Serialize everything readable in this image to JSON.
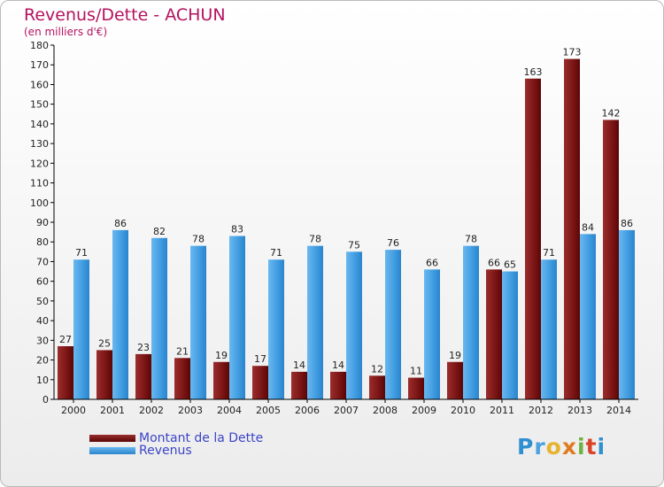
{
  "header": {
    "title": "Revenus/Dette - ACHUN",
    "subtitle": "(en milliers d'€)"
  },
  "legend": {
    "debt_label": "Montant de la Dette",
    "revenue_label": "Revenus"
  },
  "logo": {
    "text": "Proxiti"
  },
  "colors": {
    "debt": "#7a1414",
    "revenue": "#3f9be0"
  },
  "chart_data": {
    "type": "bar",
    "title": "Revenus/Dette - ACHUN",
    "subtitle": "(en milliers d'€)",
    "xlabel": "",
    "ylabel": "",
    "ylim": [
      0,
      180
    ],
    "yticks": [
      0,
      10,
      20,
      30,
      40,
      50,
      60,
      70,
      80,
      90,
      100,
      110,
      120,
      130,
      140,
      150,
      160,
      170,
      180
    ],
    "grid": false,
    "legend_position": "bottom-left",
    "categories": [
      "2000",
      "2001",
      "2002",
      "2003",
      "2004",
      "2005",
      "2006",
      "2007",
      "2008",
      "2009",
      "2010",
      "2011",
      "2012",
      "2013",
      "2014"
    ],
    "series": [
      {
        "name": "Montant de la Dette",
        "values": [
          27,
          25,
          23,
          21,
          19,
          17,
          14,
          14,
          12,
          11,
          19,
          66,
          163,
          173,
          142
        ]
      },
      {
        "name": "Revenus",
        "values": [
          71,
          86,
          82,
          78,
          83,
          71,
          78,
          75,
          76,
          66,
          78,
          65,
          71,
          84,
          86
        ]
      }
    ]
  }
}
